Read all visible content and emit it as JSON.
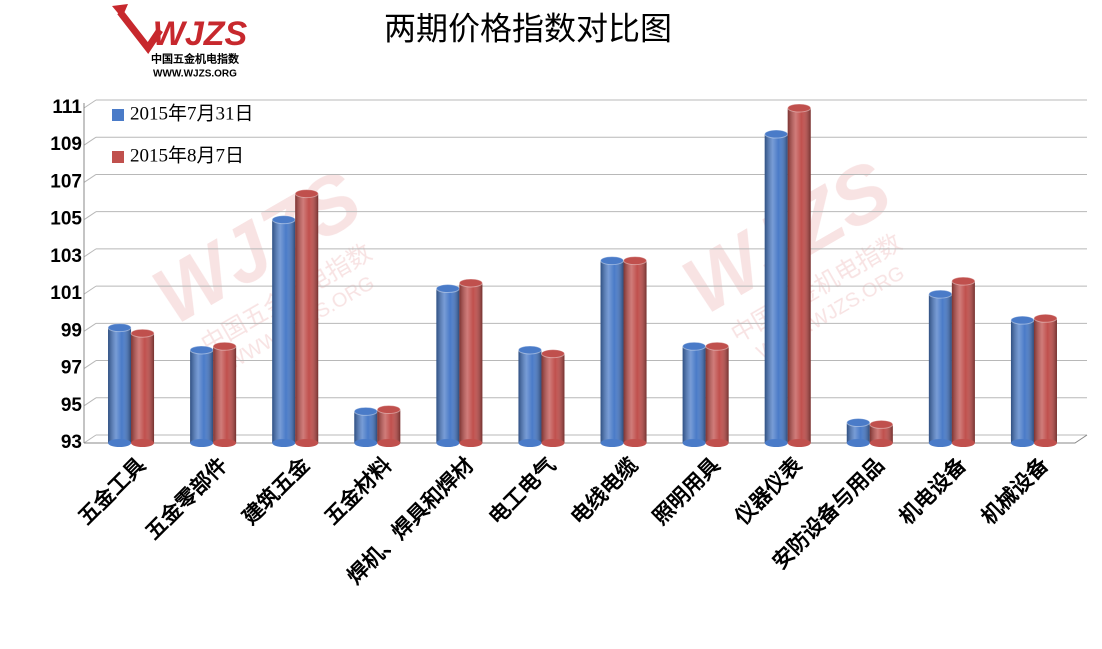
{
  "logo": {
    "mark": "WJZS",
    "name": "中国五金机电指数",
    "url": "WWW.WJZS.ORG"
  },
  "chart_data": {
    "type": "bar",
    "title": "两期价格指数对比图",
    "categories": [
      "五金工具",
      "五金零部件",
      "建筑五金",
      "五金材料",
      "焊机、焊具和焊材",
      "电工电气",
      "电线电缆",
      "照明用具",
      "仪器仪表",
      "安防设备与用品",
      "机电设备",
      "机械设备"
    ],
    "series": [
      {
        "name": "2015年7月31日",
        "color": "#4a7bc8",
        "values": [
          99.2,
          98.0,
          105.0,
          94.7,
          101.3,
          98.0,
          102.8,
          98.2,
          109.6,
          94.1,
          101.0,
          99.6
        ]
      },
      {
        "name": "2015年8月7日",
        "color": "#c0504d",
        "values": [
          98.9,
          98.2,
          106.4,
          94.8,
          101.6,
          97.8,
          102.8,
          98.2,
          111.0,
          94.0,
          101.7,
          99.7
        ]
      }
    ],
    "ylim": [
      93,
      111
    ],
    "yticks": [
      93,
      95,
      97,
      99,
      101,
      103,
      105,
      107,
      109,
      111
    ],
    "grid": true,
    "legend": "top-left"
  }
}
